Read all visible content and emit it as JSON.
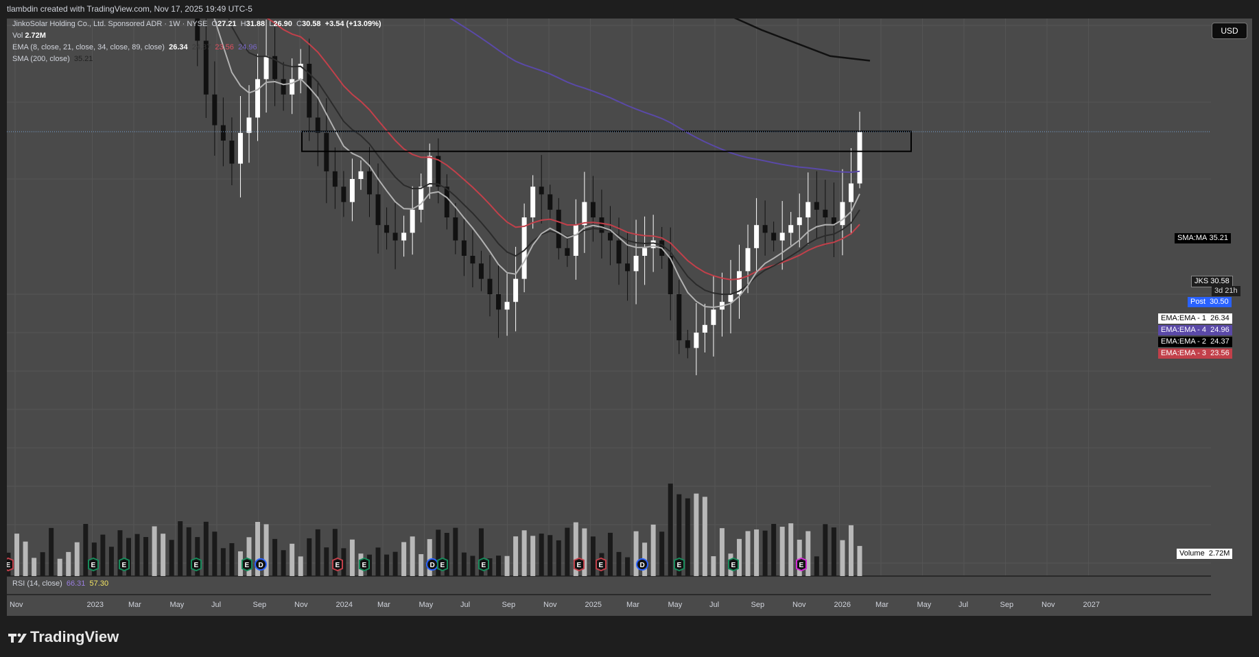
{
  "header": {
    "creator_line": "tlambdin created with TradingView.com, Nov 17, 2025 19:49 UTC-5"
  },
  "legend": {
    "instrument": "JinkoSolar Holding Co., Ltd. Sponsored ADR · 1W · NYSE",
    "o_label": "O",
    "o": "27.21",
    "h_label": "H",
    "h": "31.88",
    "l_label": "L",
    "l": "26.90",
    "c_label": "C",
    "c": "30.58",
    "change": "+3.54 (+13.09%)",
    "vol_label": "Vol",
    "vol": "2.72M",
    "ema_label": "EMA (8, close, 21, close, 34, close, 89, close)",
    "ema1": "26.34",
    "ema2": "24.37",
    "ema3": "23.56",
    "ema4": "24.96",
    "sma_label": "SMA (200, close)",
    "sma": "35.21",
    "rsi_label": "RSI (14, close)",
    "rsi1": "66.31",
    "rsi2": "57.30"
  },
  "currency_button": "USD",
  "price_labels": {
    "sma": {
      "name": "SMA:MA",
      "value": "35.21"
    },
    "ticker": {
      "name": "JKS",
      "value": "30.58",
      "countdown": "3d 21h"
    },
    "post": {
      "name": "Post",
      "value": "30.50"
    },
    "ema1": {
      "name": "EMA:EMA - 1",
      "value": "26.34"
    },
    "ema4": {
      "name": "EMA:EMA - 4",
      "value": "24.96"
    },
    "ema2": {
      "name": "EMA:EMA - 2",
      "value": "24.37"
    },
    "ema3": {
      "name": "EMA:EMA - 3",
      "value": "23.56"
    },
    "volume": {
      "name": "Volume",
      "value": "2.72M"
    }
  },
  "colors": {
    "panel_bg": "#4a4a4a",
    "candle_up": "#ffffff",
    "candle_down": "#111111",
    "ema1": "#b2b2b2",
    "ema2": "#2b2b2b",
    "ema3": "#c2404a",
    "ema4": "#5a49a8",
    "sma": "#111111",
    "post_label": "#2962ff",
    "price_line": "#7aa6d8",
    "earnings": "#178a5a",
    "dividend": "#2962ff",
    "bad_earnings": "#c2404a",
    "future_event": "#d22bd6"
  },
  "event_icons": {
    "earnings": "E",
    "dividend": "D"
  },
  "brand": {
    "name": "TradingView"
  },
  "chart_data": {
    "type": "candlestick",
    "title": "JinkoSolar Holding Co., Ltd. Sponsored ADR · 1W · NYSE",
    "y_ticks": [
      "55.00",
      "52.50",
      "50.00",
      "47.50",
      "45.00",
      "42.50",
      "40.00",
      "37.50",
      "32.50",
      "27.50",
      "20.00",
      "17.50",
      "15.00",
      "12.50",
      "10.00",
      "7.50",
      "5.00",
      "2.50"
    ],
    "y_range": [
      0,
      57.5
    ],
    "x_ticks": [
      "Nov",
      "2023",
      "Mar",
      "May",
      "Jul",
      "Sep",
      "Nov",
      "2024",
      "Mar",
      "May",
      "Jul",
      "Sep",
      "Nov",
      "2025",
      "Mar",
      "May",
      "Jul",
      "Sep",
      "Nov",
      "2026",
      "Mar",
      "May",
      "Jul",
      "Sep",
      "Nov",
      "2027"
    ],
    "last": {
      "open": 27.21,
      "high": 31.88,
      "low": 26.9,
      "close": 30.58
    },
    "resistance_zone": {
      "top": 30.6,
      "bottom": 29.3
    },
    "series": [
      {
        "name": "Close",
        "values": [
          45.5,
          47.0,
          48.5,
          50.5,
          48.0,
          42.0,
          44.0,
          49.0,
          54.0,
          53.0,
          52.0,
          51.0,
          50.0,
          47.0,
          46.0,
          44.0,
          42.0,
          43.0,
          44.5,
          43.5,
          42.0,
          40.0,
          36.5,
          33.0,
          31.0,
          30.0,
          28.5,
          30.5,
          31.5,
          34.0,
          35.5,
          34.0,
          33.0,
          34.0,
          35.0,
          31.5,
          30.5,
          28.0,
          27.0,
          26.0,
          27.5,
          28.0,
          26.5,
          24.5,
          24.0,
          23.5,
          24.0,
          25.5,
          27.0,
          29.0,
          27.0,
          25.0,
          23.5,
          22.5,
          22.0,
          21.0,
          20.0,
          19.0,
          19.5,
          21.0,
          25.0,
          27.0,
          26.5,
          25.5,
          23.0,
          22.5,
          24.5,
          26.0,
          25.0,
          24.0,
          23.5,
          22.0,
          21.5,
          22.5,
          23.0,
          23.5,
          22.5,
          20.0,
          17.0,
          16.5,
          17.5,
          18.0,
          19.0,
          19.5,
          20.0,
          21.5,
          23.0,
          24.5,
          24.0,
          23.5,
          24.0,
          24.5,
          25.0,
          26.0,
          25.5,
          25.0,
          24.5,
          26.0,
          27.21,
          30.58
        ]
      },
      {
        "name": "EMA 8",
        "values": [
          null
        ]
      },
      {
        "name": "SMA 200",
        "values": [
          null
        ]
      }
    ]
  }
}
